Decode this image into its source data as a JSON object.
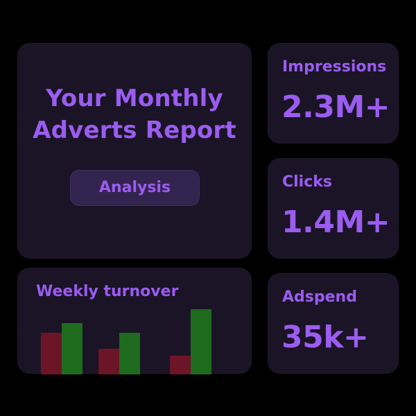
{
  "hero": {
    "title_line1": "Your Monthly",
    "title_line2": "Adverts Report",
    "button_label": "Analysis"
  },
  "stats": {
    "impressions": {
      "label": "Impressions",
      "value": "2.3M+"
    },
    "clicks": {
      "label": "Clicks",
      "value": "1.4M+"
    },
    "adspend": {
      "label": "Adspend",
      "value": "35k+"
    }
  },
  "colors": {
    "accent": "#9b5cf0",
    "card": "#1a1426",
    "background": "#000000",
    "bar_red": "#6b1526",
    "bar_green": "#1e6b1e"
  },
  "chart_data": {
    "type": "bar",
    "title": "Weekly turnover",
    "categories": [
      "",
      "",
      ""
    ],
    "series": [
      {
        "values": [
          60,
          37,
          27
        ],
        "color": "#6b1526"
      },
      {
        "values": [
          74,
          60,
          94
        ],
        "color": "#1e6b1e"
      }
    ],
    "ylim": [
      0,
      100
    ],
    "grid": false,
    "legend": "none"
  }
}
